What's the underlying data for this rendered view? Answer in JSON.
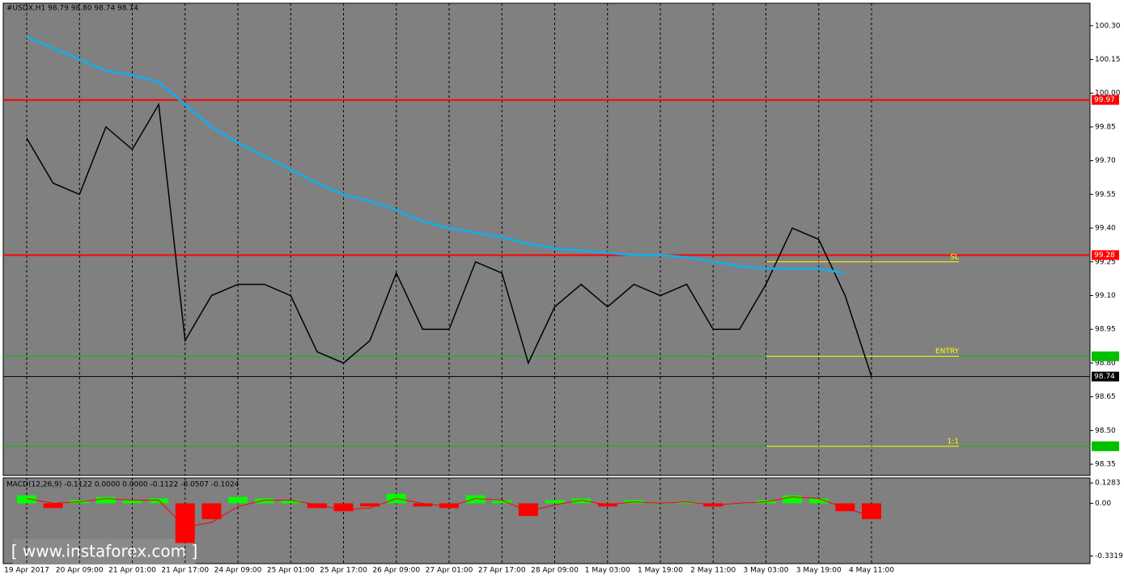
{
  "chart_data": {
    "type": "line",
    "title": "#USDX,H1  98.79 98.80 98.74 98.74",
    "watermark": "[ www.instaforex.com ]",
    "categories": [
      "19 Apr 2017",
      null,
      "20 Apr 09:00",
      null,
      "21 Apr 01:00",
      null,
      "21 Apr 17:00",
      null,
      "24 Apr 09:00",
      null,
      "25 Apr 01:00",
      null,
      "25 Apr 17:00",
      null,
      "26 Apr 09:00",
      null,
      "27 Apr 01:00",
      null,
      "27 Apr 17:00",
      null,
      "28 Apr 09:00",
      null,
      "1 May 03:00",
      null,
      "1 May 19:00",
      null,
      "2 May 11:00",
      null,
      "3 May 03:00",
      null,
      "3 May 19:00",
      null,
      "4 May 11:00"
    ],
    "series": [
      {
        "color": "#000000",
        "values": [
          99.8,
          99.6,
          99.55,
          99.85,
          99.75,
          99.95,
          98.9,
          99.1,
          99.15,
          99.15,
          99.1,
          98.85,
          98.8,
          98.9,
          99.2,
          98.95,
          98.95,
          99.25,
          99.2,
          98.8,
          99.05,
          99.15,
          99.05,
          99.15,
          99.1,
          99.15,
          98.95,
          98.95,
          99.15,
          99.4,
          99.35,
          99.1,
          98.74
        ]
      },
      {
        "color": "#1fa8e0",
        "values": [
          100.25,
          100.2,
          100.15,
          100.1,
          100.08,
          100.05,
          99.95,
          99.85,
          99.78,
          99.72,
          99.66,
          99.6,
          99.55,
          99.52,
          99.48,
          99.43,
          99.4,
          99.38,
          99.36,
          99.33,
          99.31,
          99.3,
          99.29,
          99.28,
          99.28,
          99.27,
          99.25,
          99.23,
          99.22,
          99.22,
          99.22,
          99.2,
          null
        ]
      }
    ],
    "ylim": [
      98.3,
      100.4
    ],
    "yticks": [
      {
        "value": 100.3,
        "label": "100.30"
      },
      100.15,
      {
        "value": 100.0,
        "label": "100.00"
      },
      99.85,
      {
        "value": 99.7,
        "label": "99.70"
      },
      99.55,
      {
        "value": 99.4,
        "label": "99.40"
      },
      99.25,
      {
        "value": 99.1,
        "label": "99.10"
      },
      98.95,
      {
        "value": 98.8,
        "label": "98.80"
      },
      98.65,
      {
        "value": 98.5,
        "label": "98.50"
      },
      98.35
    ],
    "levels": [
      {
        "value": 99.97,
        "color": "#ff0000",
        "label": "99.97"
      },
      {
        "value": 99.28,
        "color": "#ff0000",
        "label": "99.28"
      },
      {
        "value": 98.83,
        "color": "#00c000"
      },
      {
        "value": 98.43,
        "color": "#00c000"
      },
      {
        "value": 98.74,
        "color": "#000000",
        "label": "98.74"
      }
    ],
    "annotations": [
      {
        "text": "SL",
        "value": 99.25
      },
      {
        "text": "ENTRY",
        "value": 98.83
      },
      {
        "text": "1:1",
        "value": 98.43
      }
    ],
    "macd": {
      "title": "MACD(12,26,9) -0.1122 0.0000 0.0000 -0.1122 -0.0507 -0.1024",
      "values": [
        0.05,
        -0.03,
        0.02,
        0.04,
        0.02,
        0.03,
        -0.25,
        -0.1,
        0.04,
        0.03,
        0.02,
        -0.03,
        -0.05,
        -0.02,
        0.06,
        -0.02,
        -0.03,
        0.05,
        0.02,
        -0.08,
        0.02,
        0.03,
        -0.02,
        0.02,
        0.0,
        0.01,
        -0.02,
        0.0,
        0.02,
        0.05,
        0.03,
        -0.05,
        -0.1
      ],
      "signal": [
        0.03,
        0.0,
        0.01,
        0.03,
        0.02,
        0.02,
        -0.15,
        -0.12,
        -0.02,
        0.02,
        0.02,
        -0.01,
        -0.04,
        -0.03,
        0.03,
        0.0,
        -0.02,
        0.03,
        0.02,
        -0.05,
        -0.01,
        0.02,
        -0.01,
        0.01,
        0.0,
        0.01,
        -0.01,
        0.0,
        0.01,
        0.04,
        0.03,
        -0.03,
        -0.08
      ],
      "ylim": [
        -0.38,
        0.16
      ],
      "yticks": [
        0.1283,
        {
          "value": 0,
          "label": "0.00"
        },
        -0.3319
      ]
    }
  }
}
